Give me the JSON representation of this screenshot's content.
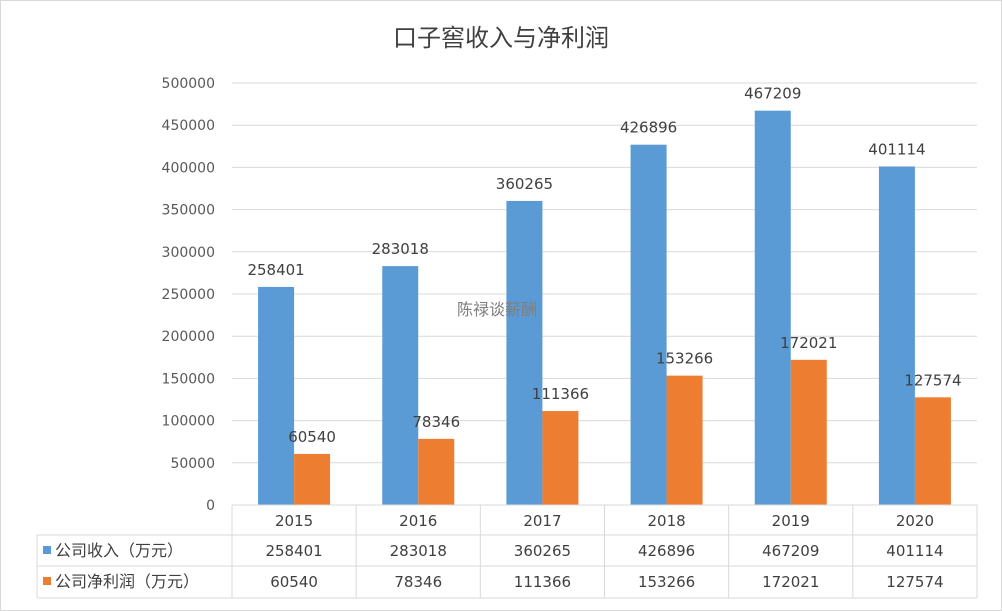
{
  "chart_data": {
    "type": "bar",
    "title": "口子窖收入与净利润",
    "categories": [
      "2015",
      "2016",
      "2017",
      "2018",
      "2019",
      "2020"
    ],
    "series": [
      {
        "name": "公司收入（万元）",
        "color": "#5b9bd5",
        "values": [
          258401,
          283018,
          360265,
          426896,
          467209,
          401114
        ]
      },
      {
        "name": "公司净利润（万元）",
        "color": "#ed7d31",
        "values": [
          60540,
          78346,
          111366,
          153266,
          172021,
          127574
        ]
      }
    ],
    "ylim": [
      0,
      500000
    ],
    "yticks": [
      0,
      50000,
      100000,
      150000,
      200000,
      250000,
      300000,
      350000,
      400000,
      450000,
      500000
    ],
    "grid": true,
    "legend": "data-table",
    "data_labels": true
  },
  "watermark": "陈禄谈薪酬"
}
